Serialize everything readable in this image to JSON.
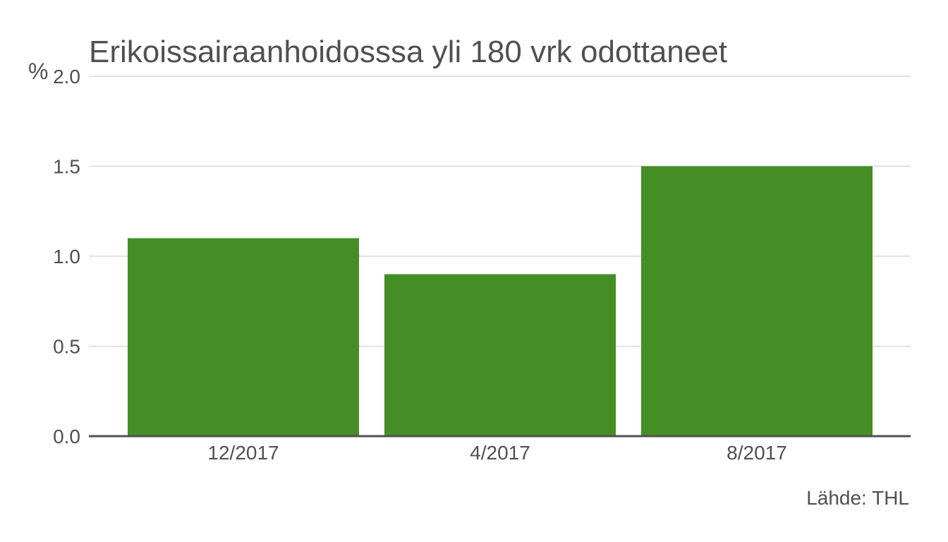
{
  "chart_data": {
    "type": "bar",
    "title": "Erikoissairaanhoidosssa yli 180 vrk odottaneet",
    "ylabel": "%",
    "xlabel": "",
    "categories": [
      "12/2017",
      "4/2017",
      "8/2017"
    ],
    "values": [
      1.1,
      0.9,
      1.5
    ],
    "ylim": [
      0,
      2.0
    ],
    "yticks": [
      "0.0",
      "0.5",
      "1.0",
      "1.5",
      "2.0"
    ],
    "grid": true,
    "bar_color": "#458e25",
    "source": "Lähde: THL"
  }
}
